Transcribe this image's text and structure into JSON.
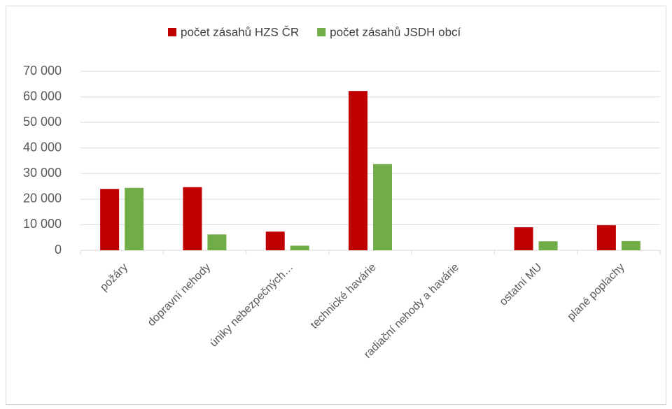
{
  "chart_data": {
    "type": "bar",
    "categories": [
      "požáry",
      "dopravní nehody",
      "úniky nebezpečných…",
      "technické havárie",
      "radiační nehody a havárie",
      "ostatní MU",
      "plané poplachy"
    ],
    "series": [
      {
        "name": "počet zásahů HZS ČR",
        "color": "#c00000",
        "values": [
          24000,
          24700,
          7300,
          62300,
          0,
          9000,
          9800
        ]
      },
      {
        "name": "počet zásahů JSDH obcí",
        "color": "#70ad47",
        "values": [
          24400,
          6200,
          1800,
          33700,
          0,
          3500,
          3600
        ]
      }
    ],
    "ylim": [
      0,
      70000
    ],
    "yticks": [
      0,
      {
        "value": 10000,
        "label": "10 000"
      },
      {
        "value": 20000,
        "label": "20 000"
      },
      {
        "value": 30000,
        "label": "30 000"
      },
      {
        "value": 40000,
        "label": "40 000"
      },
      {
        "value": 50000,
        "label": "50 000"
      },
      {
        "value": 60000,
        "label": "60 000"
      },
      {
        "value": 70000,
        "label": "70 000"
      }
    ],
    "grid": true,
    "legend": "top"
  }
}
